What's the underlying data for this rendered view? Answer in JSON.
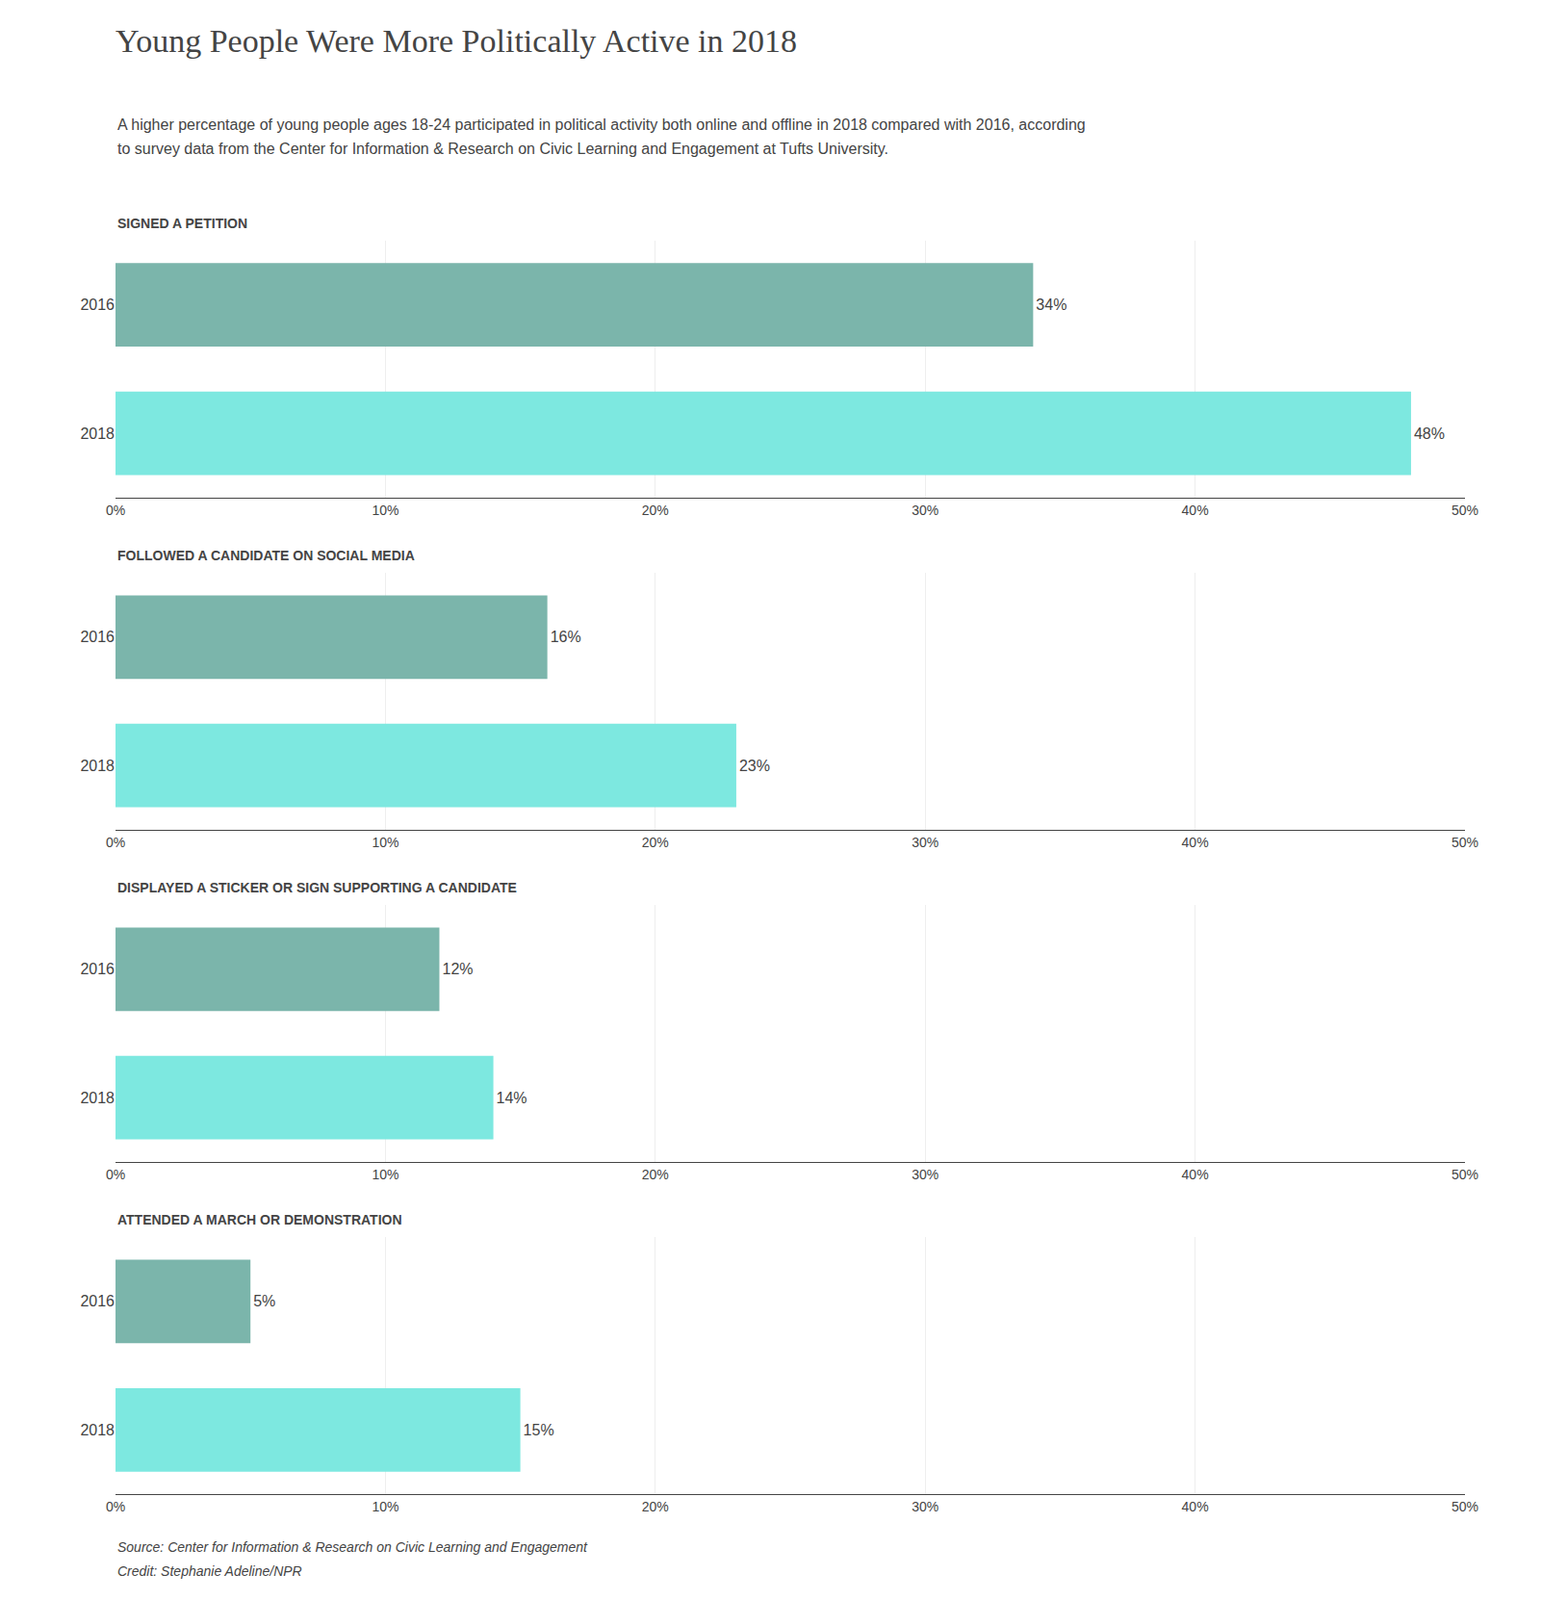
{
  "title": "Young People Were More Politically Active in 2018",
  "subtitle": [
    "A higher percentage of young people ages 18-24 participated in political activity both online and offline in 2018 compared with 2016, according",
    "to survey data from the Center for Information & Research on Civic Learning and Engagement at Tufts University."
  ],
  "annotations": [
    "Source: Center for Information & Research on Civic Learning and Engagement",
    "Credit: Stephanie Adeline/NPR"
  ],
  "chart_data": [
    {
      "type": "bar",
      "orientation": "horizontal",
      "title": "SIGNED A PETITION",
      "categories": [
        "2016",
        "2018"
      ],
      "values": [
        34,
        48
      ],
      "value_labels": [
        "34%",
        "48%"
      ],
      "data_labels": true,
      "colors": [
        "#7bb5ab",
        "#7de8e0"
      ],
      "xlim": [
        0,
        50
      ],
      "xticks": [
        {
          "value": 0,
          "label": "0%"
        },
        {
          "value": 10,
          "label": "10%"
        },
        {
          "value": 20,
          "label": "20%"
        },
        {
          "value": 30,
          "label": "30%"
        },
        {
          "value": 40,
          "label": "40%"
        },
        {
          "value": 50,
          "label": "50%"
        }
      ],
      "grid": true
    },
    {
      "type": "bar",
      "orientation": "horizontal",
      "title": "FOLLOWED A CANDIDATE ON SOCIAL MEDIA",
      "categories": [
        "2016",
        "2018"
      ],
      "values": [
        16,
        23
      ],
      "value_labels": [
        "16%",
        "23%"
      ],
      "data_labels": true,
      "colors": [
        "#7bb5ab",
        "#7de8e0"
      ],
      "xlim": [
        0,
        50
      ],
      "xticks": [
        {
          "value": 0,
          "label": "0%"
        },
        {
          "value": 10,
          "label": "10%"
        },
        {
          "value": 20,
          "label": "20%"
        },
        {
          "value": 30,
          "label": "30%"
        },
        {
          "value": 40,
          "label": "40%"
        },
        {
          "value": 50,
          "label": "50%"
        }
      ],
      "grid": true
    },
    {
      "type": "bar",
      "orientation": "horizontal",
      "title": "DISPLAYED A STICKER OR SIGN SUPPORTING A CANDIDATE",
      "categories": [
        "2016",
        "2018"
      ],
      "values": [
        12,
        14
      ],
      "value_labels": [
        "12%",
        "14%"
      ],
      "data_labels": true,
      "colors": [
        "#7bb5ab",
        "#7de8e0"
      ],
      "xlim": [
        0,
        50
      ],
      "xticks": [
        {
          "value": 0,
          "label": "0%"
        },
        {
          "value": 10,
          "label": "10%"
        },
        {
          "value": 20,
          "label": "20%"
        },
        {
          "value": 30,
          "label": "30%"
        },
        {
          "value": 40,
          "label": "40%"
        },
        {
          "value": 50,
          "label": "50%"
        }
      ],
      "grid": true
    },
    {
      "type": "bar",
      "orientation": "horizontal",
      "title": "ATTENDED A MARCH OR DEMONSTRATION",
      "categories": [
        "2016",
        "2018"
      ],
      "values": [
        5,
        15
      ],
      "value_labels": [
        "5%",
        "15%"
      ],
      "data_labels": true,
      "colors": [
        "#7bb5ab",
        "#7de8e0"
      ],
      "xlim": [
        0,
        50
      ],
      "xticks": [
        {
          "value": 0,
          "label": "0%"
        },
        {
          "value": 10,
          "label": "10%"
        },
        {
          "value": 20,
          "label": "20%"
        },
        {
          "value": 30,
          "label": "30%"
        },
        {
          "value": 40,
          "label": "40%"
        },
        {
          "value": 50,
          "label": "50%"
        }
      ],
      "grid": true
    }
  ]
}
